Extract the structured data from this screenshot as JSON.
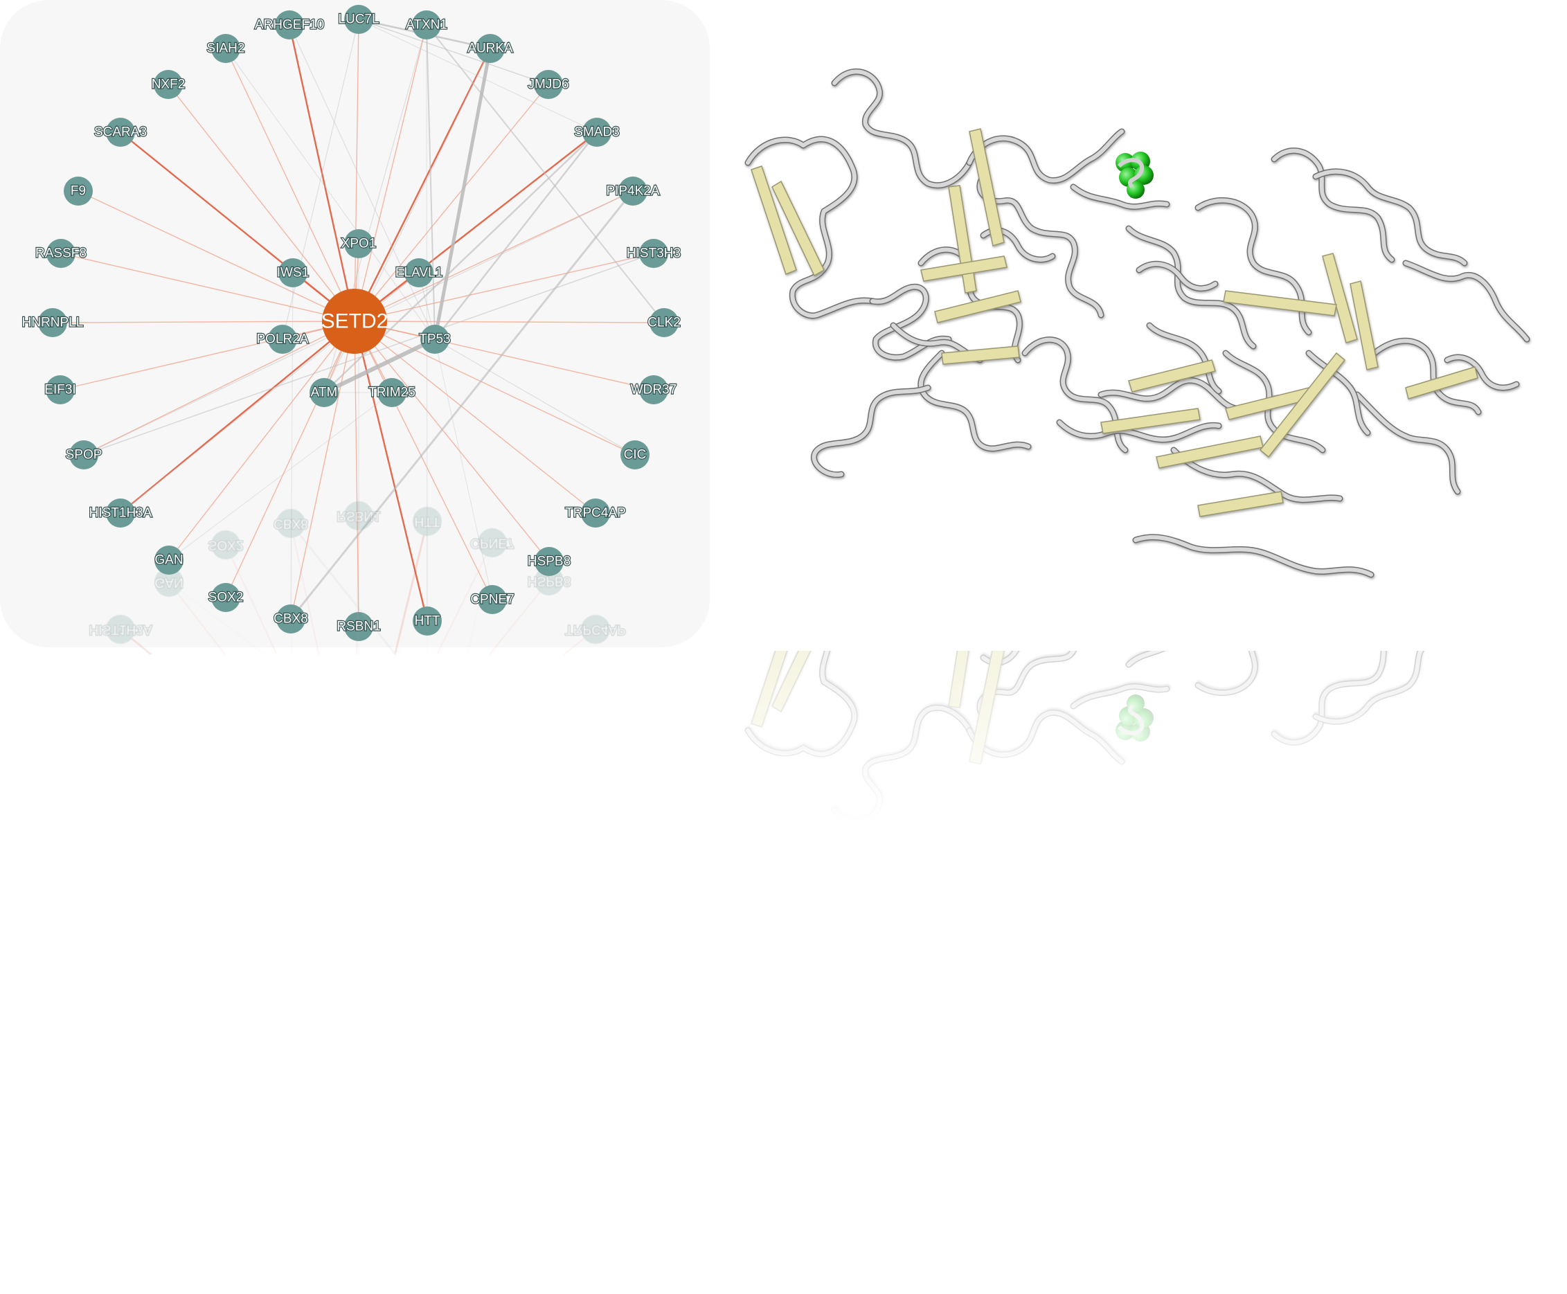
{
  "network": {
    "hub": {
      "label": "SETD2",
      "color": "#d86018"
    },
    "node_color": "#6b9b97",
    "edge_colors": {
      "hub_edge": "#f08a6b",
      "strong_hub_edge": "#e05a3a",
      "other_edge": "#b9b9b9"
    },
    "inner_nodes": [
      "XPO1",
      "IWS1",
      "ELAVL1",
      "POLR2A",
      "TP53",
      "ATM",
      "TRIM25"
    ],
    "outer_nodes": [
      "ARHGEF10",
      "LUC7L",
      "ATXN1",
      "AURKA",
      "JMJD6",
      "SMAD3",
      "PIP4K2A",
      "HIST3H3",
      "CLK2",
      "WDR37",
      "CIC",
      "TRPC4AP",
      "HSPB8",
      "CPNE7",
      "HTT",
      "RSBN1",
      "CBX8",
      "SOX2",
      "GAN",
      "HIST1H3A",
      "SPOP",
      "EIF3I",
      "HNRNPLL",
      "RASSF8",
      "F9",
      "SCARA3",
      "NXF2",
      "SIAH2"
    ]
  },
  "protein_structure": {
    "coil_color": "#d8d8d8",
    "sheet_color": "#e4e0a8",
    "ligand_color": "#22c422"
  }
}
